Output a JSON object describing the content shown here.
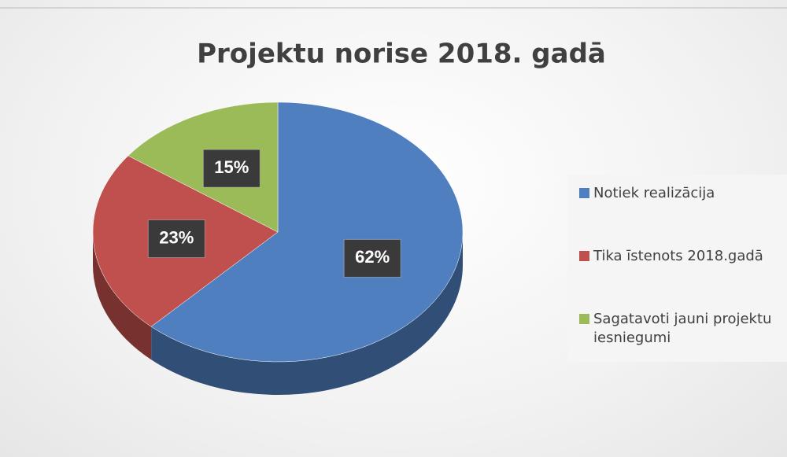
{
  "chart_data": {
    "type": "pie",
    "title": "Projektu norise 2018. gadā",
    "categories": [
      "Notiek realizācija",
      "Tika īstenots 2018.gadā",
      "Sagatavoti jauni projektu iesniegumi"
    ],
    "values": [
      62,
      23,
      15
    ],
    "value_labels": [
      "62%",
      "23%",
      "15%"
    ],
    "colors": [
      "#4f7fbf",
      "#c0504d",
      "#9bbb59"
    ],
    "legend": "right"
  }
}
